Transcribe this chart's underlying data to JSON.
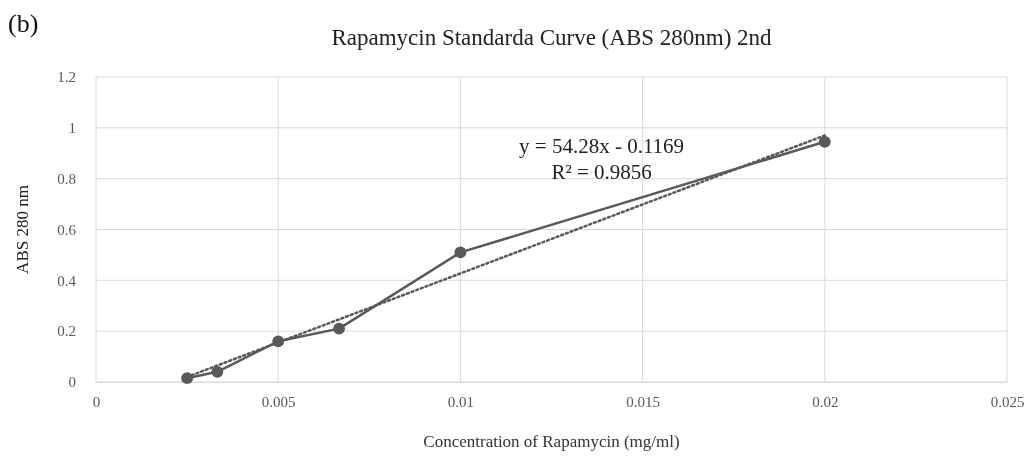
{
  "chart_data": {
    "type": "line",
    "title": "Rapamycin Standarda Curve (ABS 280nm) 2nd",
    "xlabel": "Concentration of Rapamycin (mg/ml)",
    "ylabel": "ABS 280 nm",
    "annotations": [
      "(b)",
      "y = 54.28x - 0.1169\nR² = 0.9856"
    ],
    "xlim": [
      0,
      0.025
    ],
    "xticks": [
      0,
      0.005,
      0.01,
      0.015,
      0.02,
      0.025
    ],
    "ylim": [
      0,
      1.2
    ],
    "yticks": [
      0,
      0.2,
      0.4,
      0.6,
      0.8,
      1,
      1.2
    ],
    "grid": true,
    "marker": "circle",
    "series": [
      {
        "color": "#595959",
        "x": [
          0.0025,
          0.00333,
          0.005,
          0.00667,
          0.01,
          0.02
        ],
        "values": [
          0.015,
          0.04,
          0.16,
          0.21,
          0.51,
          0.945
        ]
      },
      {
        "type": "line",
        "color": "#595959",
        "line_style": "dotted",
        "marker": "none",
        "x": [
          0.0025,
          0.02
        ],
        "values": [
          0.02,
          0.97
        ]
      }
    ]
  }
}
